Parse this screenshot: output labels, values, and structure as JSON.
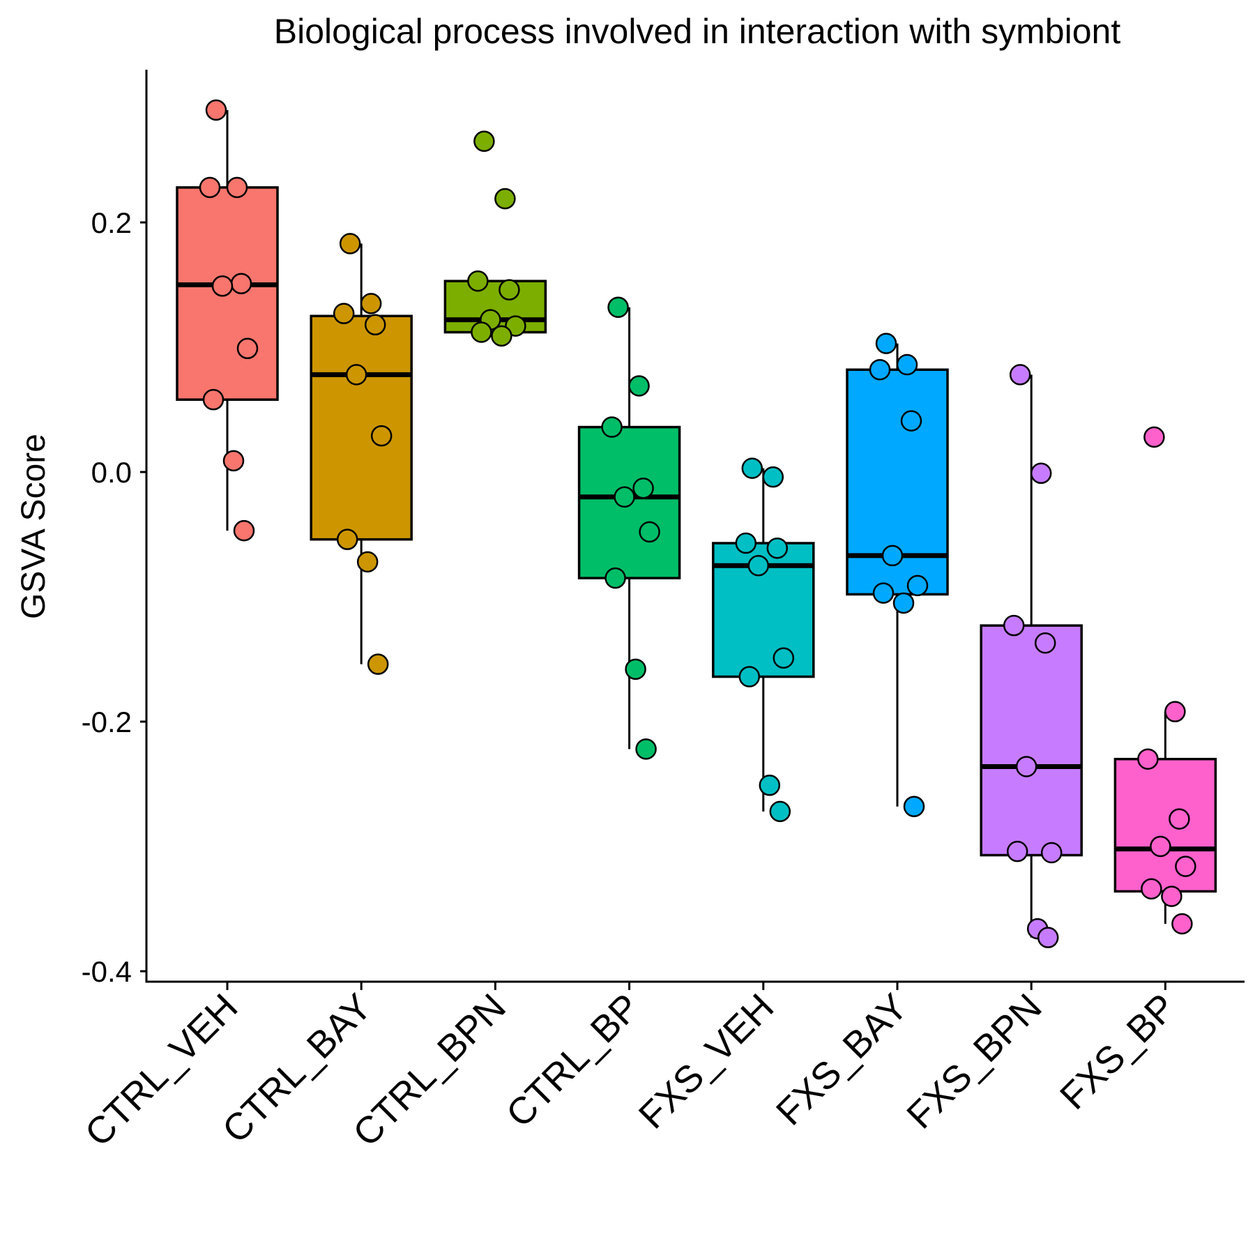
{
  "chart_data": {
    "type": "box",
    "title": "Biological process involved in interaction with symbiont",
    "xlabel": "",
    "ylabel": "GSVA Score",
    "ylim": [
      -0.4,
      0.32
    ],
    "yticks": [
      -0.4,
      -0.2,
      0.0,
      0.2
    ],
    "ytick_labels": [
      "-0.4",
      "-0.2",
      "0.0",
      "0.2"
    ],
    "grid": false,
    "legend": "none",
    "categories": [
      "CTRL_VEH",
      "CTRL_BAY",
      "CTRL_BPN",
      "CTRL_BP",
      "FXS_VEH",
      "FXS_BAY",
      "FXS_BPN",
      "FXS_BP"
    ],
    "colors": [
      "#F8766D",
      "#CD9600",
      "#7CAE00",
      "#00BE67",
      "#00BFC4",
      "#00A9FF",
      "#C77CFF",
      "#FF61CC"
    ],
    "series": [
      {
        "box": {
          "whisker_low": -0.047,
          "q1": 0.058,
          "median": 0.15,
          "q3": 0.228,
          "whisker_high": 0.29
        },
        "points": [
          0.29,
          0.228,
          0.228,
          0.151,
          0.149,
          0.099,
          0.058,
          0.009,
          -0.047
        ]
      },
      {
        "box": {
          "whisker_low": -0.154,
          "q1": -0.054,
          "median": 0.078,
          "q3": 0.125,
          "whisker_high": 0.183
        },
        "points": [
          0.183,
          0.135,
          0.127,
          0.118,
          0.078,
          0.029,
          -0.054,
          -0.072,
          -0.154
        ]
      },
      {
        "box": {
          "whisker_low": 0.112,
          "q1": 0.112,
          "median": 0.122,
          "q3": 0.153,
          "whisker_high": 0.153
        },
        "points": [
          0.265,
          0.219,
          0.153,
          0.146,
          0.122,
          0.117,
          0.112,
          0.109
        ]
      },
      {
        "box": {
          "whisker_low": -0.222,
          "q1": -0.085,
          "median": -0.02,
          "q3": 0.036,
          "whisker_high": 0.132
        },
        "points": [
          0.132,
          0.069,
          0.036,
          -0.013,
          -0.02,
          -0.048,
          -0.085,
          -0.158,
          -0.222
        ]
      },
      {
        "box": {
          "whisker_low": -0.272,
          "q1": -0.164,
          "median": -0.075,
          "q3": -0.057,
          "whisker_high": 0.003
        },
        "points": [
          0.003,
          -0.004,
          -0.057,
          -0.061,
          -0.075,
          -0.149,
          -0.164,
          -0.251,
          -0.272
        ]
      },
      {
        "box": {
          "whisker_low": -0.268,
          "q1": -0.098,
          "median": -0.067,
          "q3": 0.082,
          "whisker_high": 0.103
        },
        "points": [
          0.103,
          0.086,
          0.082,
          0.041,
          -0.067,
          -0.091,
          -0.097,
          -0.105,
          -0.268
        ]
      },
      {
        "box": {
          "whisker_low": -0.373,
          "q1": -0.307,
          "median": -0.236,
          "q3": -0.123,
          "whisker_high": 0.078
        },
        "points": [
          0.078,
          -0.001,
          -0.123,
          -0.137,
          -0.236,
          -0.305,
          -0.304,
          -0.366,
          -0.373
        ]
      },
      {
        "box": {
          "whisker_low": -0.362,
          "q1": -0.336,
          "median": -0.302,
          "q3": -0.23,
          "whisker_high": -0.192
        },
        "points": [
          0.028,
          -0.192,
          -0.23,
          -0.278,
          -0.3,
          -0.316,
          -0.334,
          -0.34,
          -0.362
        ]
      }
    ]
  }
}
